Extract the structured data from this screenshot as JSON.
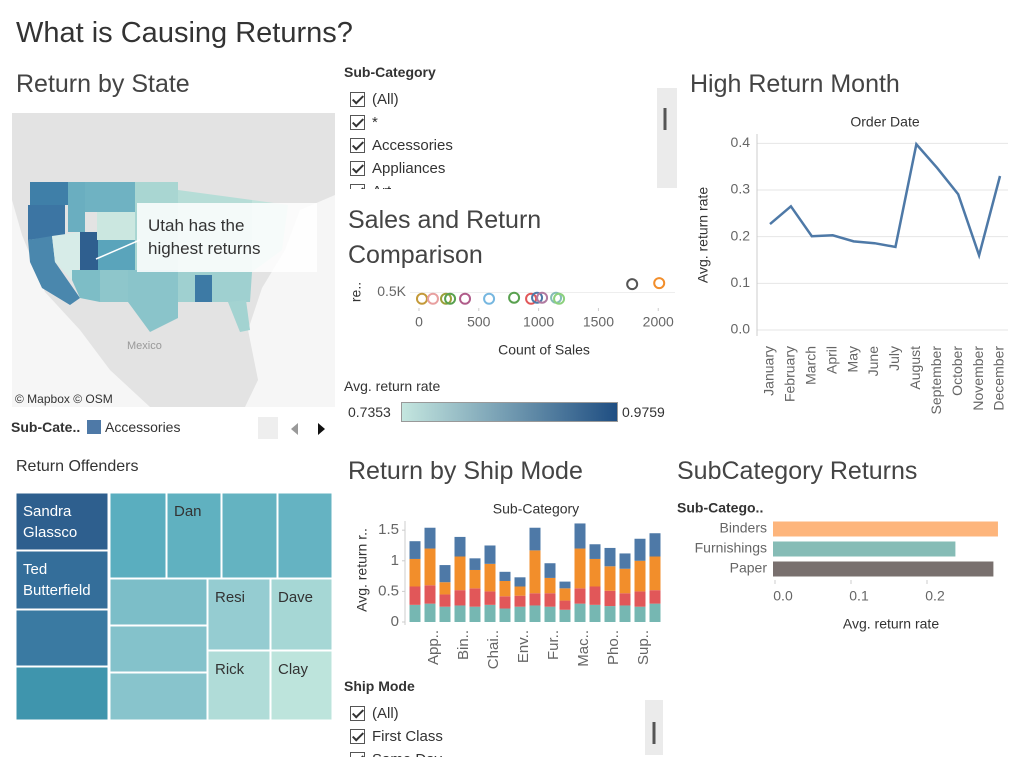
{
  "title": "What is Causing Returns?",
  "map": {
    "title": "Return by State",
    "annotation": "Utah has the highest returns",
    "label": "Mexico",
    "credit": "© Mapbox © OSM",
    "legend_title": "Sub-Cate..",
    "legend_item": "Accessories",
    "legend_color": "#4e79a7"
  },
  "color_legend": {
    "title": "Avg. return rate",
    "min": 0.7353,
    "max": 0.9759,
    "colors": [
      "#c4e6df",
      "#1f4e82"
    ]
  },
  "filters": [
    {
      "title": "Sub-Category",
      "options": [
        "(All)",
        "*",
        "Accessories",
        "Appliances",
        "Art"
      ]
    },
    {
      "title": "Ship Mode",
      "options": [
        "(All)",
        "First Class",
        "Same Day"
      ]
    }
  ],
  "treemap": {
    "title": "Return Offenders",
    "labels": [
      "Sandra Glassco",
      "Ted Butterfield",
      null,
      null,
      null,
      "Dan",
      null,
      null,
      null,
      null,
      null,
      "Resi",
      "Dave",
      "Rick",
      "Clay"
    ],
    "colors": [
      "#2e5f8e",
      "#346e9a",
      "#3a7aa2",
      "#3f95ad",
      "#5aaebf",
      "#60b1c0",
      "#64b3c1",
      "#65b3c2",
      "#7cbec8",
      "#84c2cb",
      "#88c4cc",
      "#95ccd1",
      "#a6d7d5",
      "#b0dcd8",
      "#bde4dc"
    ]
  },
  "chart_data": [
    {
      "type": "line",
      "title": "High Return Month",
      "subtitle": "Order Date",
      "y_label": "Avg. return rate",
      "categories": [
        "January",
        "February",
        "March",
        "April",
        "May",
        "June",
        "July",
        "August",
        "September",
        "October",
        "November",
        "December"
      ],
      "values": [
        0.227,
        0.265,
        0.201,
        0.203,
        0.19,
        0.186,
        0.178,
        0.398,
        0.347,
        0.291,
        0.16,
        0.33
      ],
      "color": "#4e79a7",
      "ylim": [
        0,
        0.42
      ],
      "yticks": [
        {
          "value": 0,
          "label": "0.0"
        },
        0.1,
        0.2,
        0.3,
        0.4
      ],
      "grid": true
    },
    {
      "type": "scatter",
      "title": "Sales and Return Comparison",
      "x_label": "Count of Sales",
      "y_label": "re..",
      "x": [
        25,
        117,
        226,
        260,
        385,
        586,
        795,
        937,
        987,
        1029,
        1146,
        1171,
        1782,
        2008
      ],
      "values": [
        470,
        470,
        470,
        470,
        470,
        470,
        475,
        470,
        475,
        475,
        475,
        470,
        540,
        545
      ],
      "colors": [
        "#c49a3a",
        "#e8a0a0",
        "#9aa03a",
        "#59a14f",
        "#b05c8a",
        "#76b7e0",
        "#59a14f",
        "#e15759",
        "#4e79a7",
        "#b07aa1",
        "#86bcb6",
        "#8cd17d",
        "#555555",
        "#f28e2b"
      ],
      "xlim": [
        -75,
        2140
      ],
      "ylim": [
        440,
        560
      ],
      "xticks": [
        0,
        500,
        1000,
        1500,
        2000
      ],
      "yticks": [
        {
          "value": 500,
          "label": "0.5K"
        }
      ]
    },
    {
      "type": "stacked_bar",
      "title": "Return by Ship Mode",
      "subtitle": "Sub-Category",
      "y_label": "Avg. return r..",
      "categories": [
        null,
        "App..",
        null,
        "Bin..",
        null,
        "Chai..",
        null,
        "Env..",
        null,
        "Fur..",
        null,
        "Mac..",
        null,
        "Pho..",
        null,
        "Sup..",
        null
      ],
      "series": [
        {
          "color": "#76b7b2",
          "values": [
            0.28,
            0.3,
            0.25,
            0.27,
            0.25,
            0.28,
            0.22,
            0.25,
            0.27,
            0.25,
            0.2,
            0.3,
            0.28,
            0.26,
            0.27,
            0.25,
            0.3
          ]
        },
        {
          "color": "#e15759",
          "values": [
            0.3,
            0.3,
            0.2,
            0.25,
            0.3,
            0.22,
            0.2,
            0.18,
            0.2,
            0.22,
            0.15,
            0.25,
            0.3,
            0.25,
            0.2,
            0.25,
            0.22
          ]
        },
        {
          "color": "#f28e2b",
          "values": [
            0.45,
            0.6,
            0.2,
            0.55,
            0.3,
            0.45,
            0.25,
            0.15,
            0.7,
            0.25,
            0.2,
            0.65,
            0.45,
            0.4,
            0.4,
            0.5,
            0.55
          ]
        },
        {
          "color": "#4e79a7",
          "values": [
            0.29,
            0.34,
            0.28,
            0.32,
            0.19,
            0.3,
            0.15,
            0.15,
            0.37,
            0.24,
            0.11,
            0.41,
            0.24,
            0.3,
            0.25,
            0.36,
            0.38
          ]
        }
      ],
      "ylim": [
        0,
        1.65
      ],
      "yticks": [
        0,
        0.5,
        1,
        1.5
      ]
    },
    {
      "type": "hbar",
      "title": "SubCategory Returns",
      "y_header": "Sub-Catego..",
      "x_label": "Avg. return rate",
      "categories": [
        "Binders",
        "Furnishings",
        "Paper"
      ],
      "values": [
        0.296,
        0.24,
        0.29
      ],
      "colors": [
        "#fdb57c",
        "#86bcb6",
        "#79706e"
      ],
      "xlim": [
        0,
        0.3
      ],
      "xticks": [
        {
          "value": 0,
          "label": "0.0"
        },
        0.1,
        0.2
      ]
    }
  ]
}
